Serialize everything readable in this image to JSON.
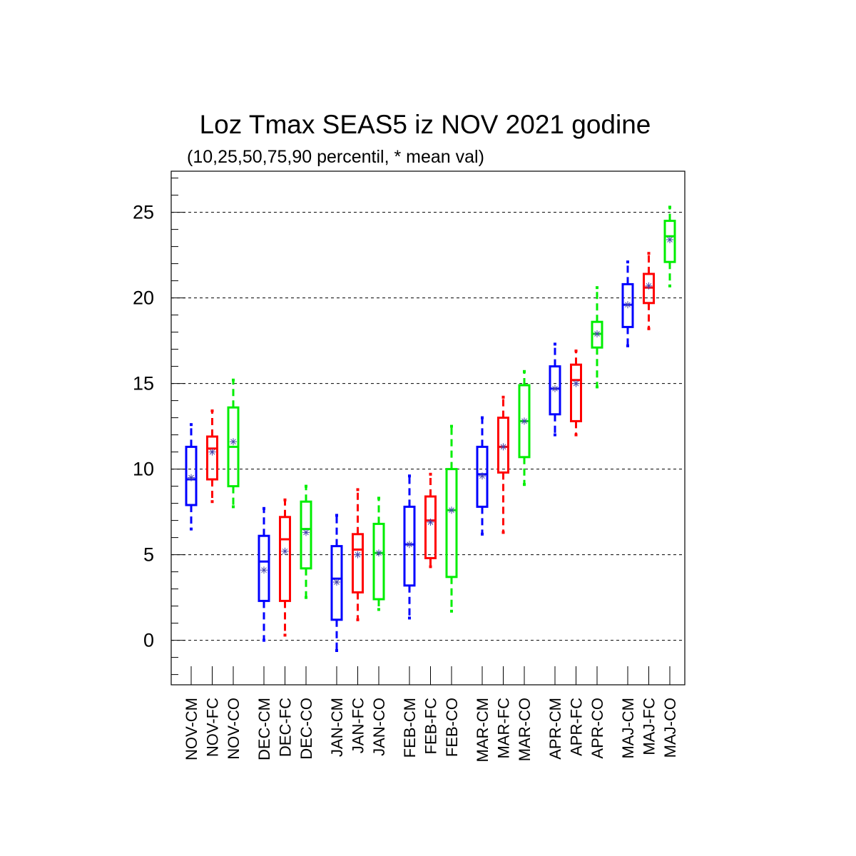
{
  "chart_data": {
    "type": "boxplot",
    "title": "Loz Tmax SEAS5 iz NOV 2021 godine",
    "subtitle": "(10,25,50,75,90 percentil, * mean val)",
    "ylim": [
      -2.6,
      27.4
    ],
    "yticks": [
      0,
      5,
      10,
      15,
      20,
      25
    ],
    "grid": "dashed horizontal at major ticks",
    "colors": {
      "CM": "#0000ff",
      "FC": "#ff0000",
      "CO": "#00ee00",
      "mean_marker": "#4444aa"
    },
    "groups": [
      {
        "boxes": [
          {
            "label": "NOV-CM",
            "kind": "CM",
            "p10": 6.5,
            "p25": 7.9,
            "p50": 9.4,
            "p75": 11.3,
            "p90": 12.6,
            "mean": 9.5
          },
          {
            "label": "NOV-FC",
            "kind": "FC",
            "p10": 8.1,
            "p25": 9.4,
            "p50": 11.2,
            "p75": 11.9,
            "p90": 13.4,
            "mean": 11.0
          },
          {
            "label": "NOV-CO",
            "kind": "CO",
            "p10": 7.8,
            "p25": 9.0,
            "p50": 11.3,
            "p75": 13.6,
            "p90": 15.2,
            "mean": 11.6
          }
        ]
      },
      {
        "boxes": [
          {
            "label": "DEC-CM",
            "kind": "CM",
            "p10": 0.0,
            "p25": 2.3,
            "p50": 4.6,
            "p75": 6.1,
            "p90": 7.7,
            "mean": 4.1
          },
          {
            "label": "DEC-FC",
            "kind": "FC",
            "p10": 0.3,
            "p25": 2.3,
            "p50": 5.9,
            "p75": 7.2,
            "p90": 8.2,
            "mean": 5.2
          },
          {
            "label": "DEC-CO",
            "kind": "CO",
            "p10": 2.5,
            "p25": 4.2,
            "p50": 6.5,
            "p75": 8.1,
            "p90": 9.0,
            "mean": 6.3
          }
        ]
      },
      {
        "boxes": [
          {
            "label": "JAN-CM",
            "kind": "CM",
            "p10": -0.6,
            "p25": 1.2,
            "p50": 3.6,
            "p75": 5.5,
            "p90": 7.3,
            "mean": 3.4
          },
          {
            "label": "JAN-FC",
            "kind": "FC",
            "p10": 1.2,
            "p25": 2.8,
            "p50": 5.3,
            "p75": 6.2,
            "p90": 8.8,
            "mean": 5.0
          },
          {
            "label": "JAN-CO",
            "kind": "CO",
            "p10": 1.8,
            "p25": 2.4,
            "p50": 5.1,
            "p75": 6.8,
            "p90": 8.3,
            "mean": 5.1
          }
        ]
      },
      {
        "boxes": [
          {
            "label": "FEB-CM",
            "kind": "CM",
            "p10": 1.3,
            "p25": 3.2,
            "p50": 5.6,
            "p75": 7.8,
            "p90": 9.6,
            "mean": 5.6
          },
          {
            "label": "FEB-FC",
            "kind": "FC",
            "p10": 4.3,
            "p25": 4.8,
            "p50": 7.0,
            "p75": 8.4,
            "p90": 9.7,
            "mean": 6.9
          },
          {
            "label": "FEB-CO",
            "kind": "CO",
            "p10": 1.7,
            "p25": 3.7,
            "p50": 7.6,
            "p75": 10.0,
            "p90": 12.5,
            "mean": 7.6
          }
        ]
      },
      {
        "boxes": [
          {
            "label": "MAR-CM",
            "kind": "CM",
            "p10": 6.2,
            "p25": 7.8,
            "p50": 9.7,
            "p75": 11.3,
            "p90": 13.0,
            "mean": 9.6
          },
          {
            "label": "MAR-FC",
            "kind": "FC",
            "p10": 6.3,
            "p25": 9.8,
            "p50": 11.3,
            "p75": 13.0,
            "p90": 14.2,
            "mean": 11.3
          },
          {
            "label": "MAR-CO",
            "kind": "CO",
            "p10": 9.1,
            "p25": 10.7,
            "p50": 12.8,
            "p75": 14.9,
            "p90": 15.7,
            "mean": 12.8
          }
        ]
      },
      {
        "boxes": [
          {
            "label": "APR-CM",
            "kind": "CM",
            "p10": 12.0,
            "p25": 13.2,
            "p50": 14.7,
            "p75": 16.0,
            "p90": 17.3,
            "mean": 14.7
          },
          {
            "label": "APR-FC",
            "kind": "FC",
            "p10": 12.0,
            "p25": 12.8,
            "p50": 15.2,
            "p75": 16.1,
            "p90": 16.9,
            "mean": 15.0
          },
          {
            "label": "APR-CO",
            "kind": "CO",
            "p10": 14.8,
            "p25": 17.1,
            "p50": 17.9,
            "p75": 18.6,
            "p90": 20.6,
            "mean": 17.9
          }
        ]
      },
      {
        "boxes": [
          {
            "label": "MAJ-CM",
            "kind": "CM",
            "p10": 17.2,
            "p25": 18.3,
            "p50": 19.6,
            "p75": 20.8,
            "p90": 22.1,
            "mean": 19.6
          },
          {
            "label": "MAJ-FC",
            "kind": "FC",
            "p10": 18.2,
            "p25": 19.7,
            "p50": 20.6,
            "p75": 21.4,
            "p90": 22.6,
            "mean": 20.7
          },
          {
            "label": "MAJ-CO",
            "kind": "CO",
            "p10": 20.7,
            "p25": 22.1,
            "p50": 23.6,
            "p75": 24.5,
            "p90": 25.3,
            "mean": 23.4
          }
        ]
      }
    ]
  }
}
